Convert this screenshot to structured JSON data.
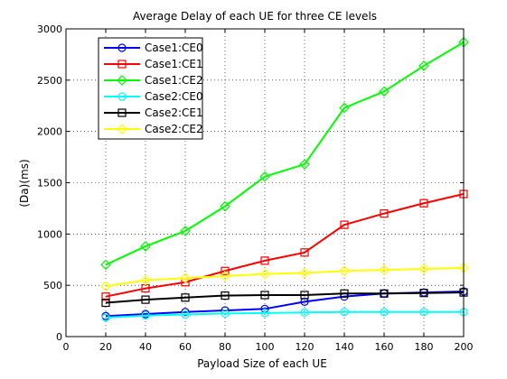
{
  "chart_data": {
    "type": "line",
    "title": "Average Delay of each UE  for three CE levels",
    "xlabel": "Payload Size of each UE",
    "ylabel": "(Da)(ms)",
    "xlim": [
      0,
      200
    ],
    "ylim": [
      0,
      3000
    ],
    "xticks": [
      0,
      20,
      40,
      60,
      80,
      100,
      120,
      140,
      160,
      180,
      200
    ],
    "yticks": [
      0,
      500,
      1000,
      1500,
      2000,
      2500,
      3000
    ],
    "grid": true,
    "legend_position": "top-left",
    "x": [
      20,
      40,
      60,
      80,
      100,
      120,
      140,
      160,
      180,
      200
    ],
    "series": [
      {
        "name": "Case1:CE0",
        "color": "#0000ff",
        "marker": "circle",
        "values": [
          200,
          220,
          240,
          255,
          270,
          340,
          390,
          420,
          430,
          440
        ]
      },
      {
        "name": "Case1:CE1",
        "color": "#ff0000",
        "marker": "square",
        "values": [
          390,
          470,
          530,
          640,
          740,
          820,
          1090,
          1200,
          1300,
          1390
        ]
      },
      {
        "name": "Case1:CE2",
        "color": "#00ff00",
        "marker": "diamond",
        "values": [
          700,
          880,
          1030,
          1270,
          1560,
          1680,
          2230,
          2390,
          2640,
          2870
        ]
      },
      {
        "name": "Case2:CE0",
        "color": "#00ffff",
        "marker": "circle",
        "values": [
          185,
          205,
          215,
          225,
          230,
          235,
          240,
          240,
          240,
          240
        ]
      },
      {
        "name": "Case2:CE1",
        "color": "#000000",
        "marker": "square",
        "values": [
          330,
          360,
          380,
          400,
          405,
          405,
          420,
          420,
          425,
          430
        ]
      },
      {
        "name": "Case2:CE2",
        "color": "#ffff00",
        "marker": "diamond",
        "values": [
          490,
          550,
          570,
          590,
          610,
          620,
          640,
          650,
          660,
          670
        ]
      }
    ]
  }
}
